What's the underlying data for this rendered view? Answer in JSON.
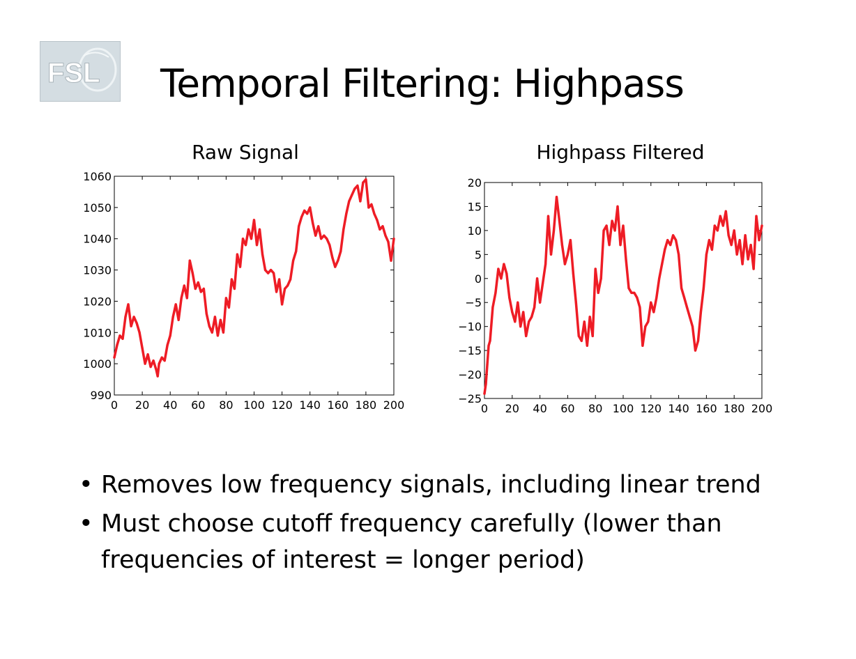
{
  "logo": {
    "text": "FSL"
  },
  "title": "Temporal Filtering: Highpass",
  "bullets": [
    "Removes low frequency signals, including linear trend",
    "Must choose cutoff frequency carefully (lower than frequencies of interest = longer period)"
  ],
  "chart_data": [
    {
      "type": "line",
      "title": "Raw Signal",
      "xlabel": "",
      "ylabel": "",
      "xlim": [
        0,
        200
      ],
      "ylim": [
        990,
        1060
      ],
      "xticks": [
        0,
        20,
        40,
        60,
        80,
        100,
        120,
        140,
        160,
        180,
        200
      ],
      "yticks": [
        990,
        1000,
        1010,
        1020,
        1030,
        1040,
        1050,
        1060
      ],
      "grid": false,
      "line_color": "#ee1c25",
      "series": [
        {
          "x": [
            0,
            2,
            4,
            6,
            8,
            10,
            12,
            14,
            16,
            18,
            20,
            22,
            24,
            26,
            28,
            30,
            31,
            32,
            34,
            36,
            38,
            40,
            42,
            44,
            46,
            48,
            50,
            52,
            54,
            56,
            58,
            60,
            62,
            64,
            66,
            68,
            70,
            72,
            74,
            76,
            78,
            80,
            82,
            84,
            86,
            88,
            90,
            92,
            94,
            96,
            98,
            100,
            102,
            104,
            106,
            108,
            110,
            112,
            114,
            116,
            118,
            120,
            122,
            124,
            126,
            128,
            130,
            132,
            134,
            136,
            138,
            140,
            142,
            144,
            146,
            148,
            150,
            152,
            154,
            156,
            158,
            160,
            162,
            164,
            166,
            168,
            170,
            172,
            174,
            176,
            178,
            180,
            182,
            184,
            186,
            188,
            190,
            192,
            194,
            196,
            198,
            200
          ],
          "y": [
            1002,
            1006,
            1009,
            1008,
            1015,
            1019,
            1012,
            1015,
            1013,
            1010,
            1005,
            1000,
            1003,
            999,
            1001,
            998,
            996,
            1000,
            1002,
            1001,
            1006,
            1009,
            1015,
            1019,
            1014,
            1021,
            1025,
            1021,
            1033,
            1029,
            1024,
            1026,
            1023,
            1024,
            1016,
            1012,
            1010,
            1015,
            1009,
            1014,
            1010,
            1021,
            1018,
            1027,
            1024,
            1035,
            1031,
            1040,
            1038,
            1043,
            1040,
            1046,
            1038,
            1043,
            1035,
            1030,
            1029,
            1030,
            1029,
            1023,
            1027,
            1019,
            1024,
            1025,
            1027,
            1033,
            1036,
            1044,
            1047,
            1049,
            1048,
            1050,
            1045,
            1041,
            1044,
            1040,
            1041,
            1040,
            1038,
            1034,
            1031,
            1033,
            1036,
            1043,
            1048,
            1052,
            1054,
            1056,
            1057,
            1052,
            1058,
            1059,
            1050,
            1051,
            1048,
            1046,
            1043,
            1044,
            1041,
            1039,
            1033,
            1040
          ]
        }
      ]
    },
    {
      "type": "line",
      "title": "Highpass Filtered",
      "xlabel": "",
      "ylabel": "",
      "xlim": [
        0,
        200
      ],
      "ylim": [
        -25,
        20
      ],
      "xticks": [
        0,
        20,
        40,
        60,
        80,
        100,
        120,
        140,
        160,
        180,
        200
      ],
      "yticks": [
        -25,
        -20,
        -15,
        -10,
        -5,
        0,
        5,
        10,
        15,
        20
      ],
      "ytick_labels": [
        "−25",
        "−20",
        "−15",
        "−10",
        "−5",
        "0",
        "5",
        "10",
        "15",
        "20"
      ],
      "grid": false,
      "line_color": "#ee1c25",
      "series": [
        {
          "x": [
            0,
            1,
            2,
            3,
            4,
            6,
            8,
            10,
            12,
            14,
            16,
            18,
            20,
            22,
            24,
            26,
            28,
            30,
            32,
            34,
            36,
            38,
            40,
            42,
            44,
            46,
            48,
            50,
            52,
            54,
            56,
            58,
            60,
            62,
            64,
            66,
            68,
            70,
            72,
            74,
            76,
            78,
            80,
            82,
            84,
            86,
            88,
            90,
            92,
            94,
            96,
            98,
            100,
            102,
            104,
            106,
            108,
            110,
            112,
            114,
            116,
            118,
            120,
            122,
            124,
            126,
            128,
            130,
            132,
            134,
            136,
            138,
            140,
            142,
            144,
            146,
            148,
            150,
            152,
            154,
            156,
            158,
            160,
            162,
            164,
            166,
            168,
            170,
            172,
            174,
            176,
            178,
            180,
            182,
            184,
            186,
            188,
            190,
            192,
            194,
            196,
            198,
            200
          ],
          "y": [
            -24,
            -22,
            -18,
            -14,
            -13,
            -6,
            -3,
            2,
            0,
            3,
            1,
            -4,
            -7,
            -9,
            -5,
            -10,
            -7,
            -12,
            -9,
            -8,
            -6,
            0,
            -5,
            -1,
            3,
            13,
            5,
            10,
            17,
            12,
            7,
            3,
            5,
            8,
            1,
            -5,
            -12,
            -13,
            -9,
            -14,
            -8,
            -12,
            2,
            -3,
            0,
            10,
            11,
            7,
            12,
            10,
            15,
            7,
            11,
            4,
            -2,
            -3,
            -3,
            -4,
            -6,
            -14,
            -10,
            -9,
            -5,
            -7,
            -4,
            0,
            3,
            6,
            8,
            7,
            9,
            8,
            5,
            -2,
            -4,
            -6,
            -8,
            -10,
            -15,
            -13,
            -7,
            -2,
            5,
            8,
            6,
            11,
            10,
            13,
            11,
            14,
            9,
            7,
            10,
            5,
            8,
            3,
            9,
            4,
            7,
            2,
            13,
            8,
            11
          ]
        }
      ]
    }
  ]
}
